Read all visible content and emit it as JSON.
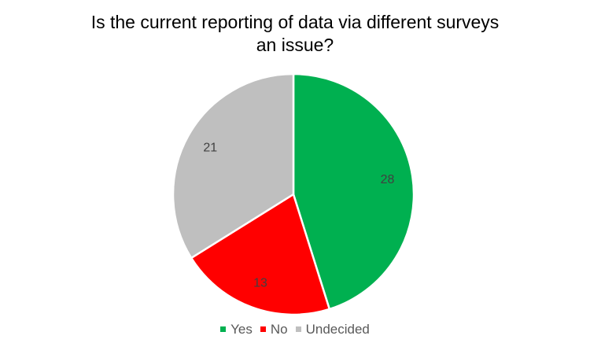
{
  "chart_data": {
    "type": "pie",
    "title_lines": [
      "Is the current reporting of data via different surveys",
      "an issue?"
    ],
    "categories": [
      "Yes",
      "No",
      "Undecided"
    ],
    "values": [
      28,
      13,
      21
    ],
    "colors": [
      "#00B050",
      "#FF0000",
      "#BFBFBF"
    ],
    "data_labels": [
      "28",
      "13",
      "21"
    ],
    "legend_position": "bottom"
  }
}
